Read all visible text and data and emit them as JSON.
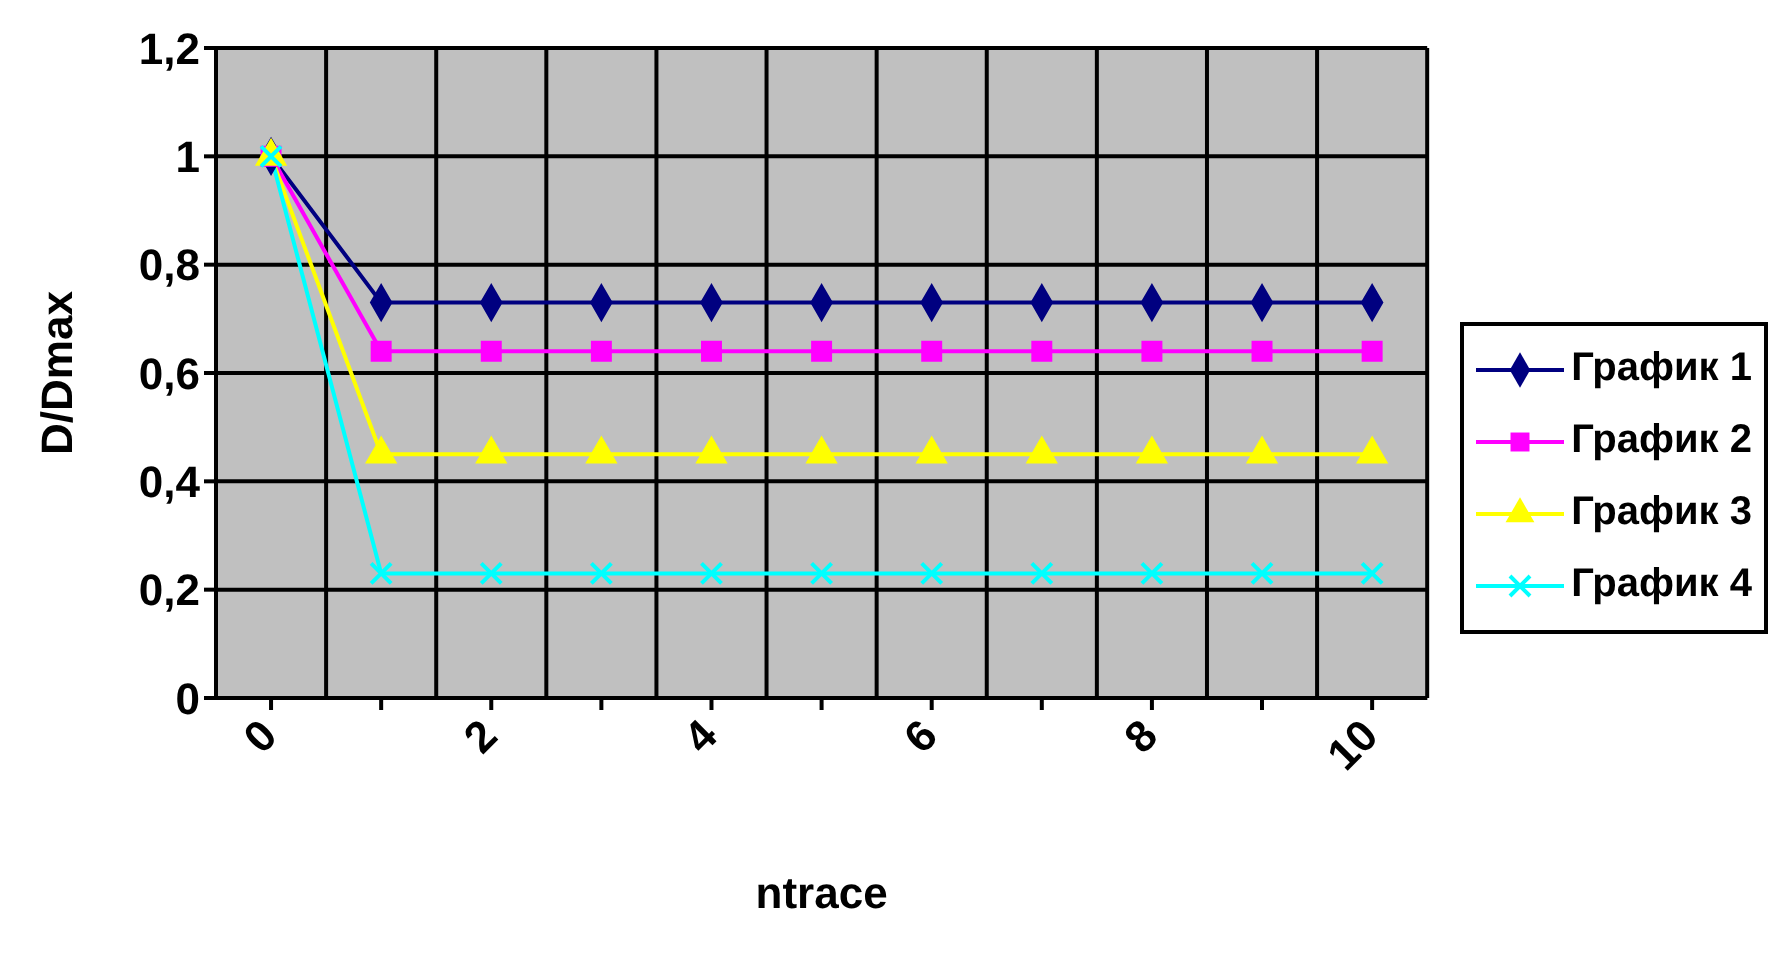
{
  "chart_data": {
    "type": "line",
    "xlabel": "ntrace",
    "ylabel": "D/Dmax",
    "categories": [
      "0",
      null,
      "2",
      null,
      "4",
      null,
      "6",
      null,
      "8",
      null,
      "10"
    ],
    "series": [
      {
        "name": "График 1",
        "color": "#000080",
        "marker": "diamond",
        "values": [
          1,
          0.73,
          0.73,
          0.73,
          0.73,
          0.73,
          0.73,
          0.73,
          0.73,
          0.73,
          0.73
        ]
      },
      {
        "name": "График 2",
        "color": "#ff00ff",
        "marker": "square",
        "values": [
          1,
          0.64,
          0.64,
          0.64,
          0.64,
          0.64,
          0.64,
          0.64,
          0.64,
          0.64,
          0.64
        ]
      },
      {
        "name": "График 3",
        "color": "#ffff00",
        "marker": "triangle",
        "values": [
          1,
          0.45,
          0.45,
          0.45,
          0.45,
          0.45,
          0.45,
          0.45,
          0.45,
          0.45,
          0.45
        ]
      },
      {
        "name": "График 4",
        "color": "#00ffff",
        "marker": "cross",
        "values": [
          1,
          0.23,
          0.23,
          0.23,
          0.23,
          0.23,
          0.23,
          0.23,
          0.23,
          0.23,
          0.23
        ]
      }
    ],
    "ylim": [
      0,
      1.2
    ],
    "yticks": [
      0,
      {
        "value": 0.2,
        "label": "0,2"
      },
      {
        "value": 0.4,
        "label": "0,4"
      },
      {
        "value": 0.6,
        "label": "0,6"
      },
      {
        "value": 0.8,
        "label": "0,8"
      },
      1,
      {
        "value": 1.2,
        "label": "1,2"
      }
    ],
    "grid": true,
    "legend": "right"
  }
}
